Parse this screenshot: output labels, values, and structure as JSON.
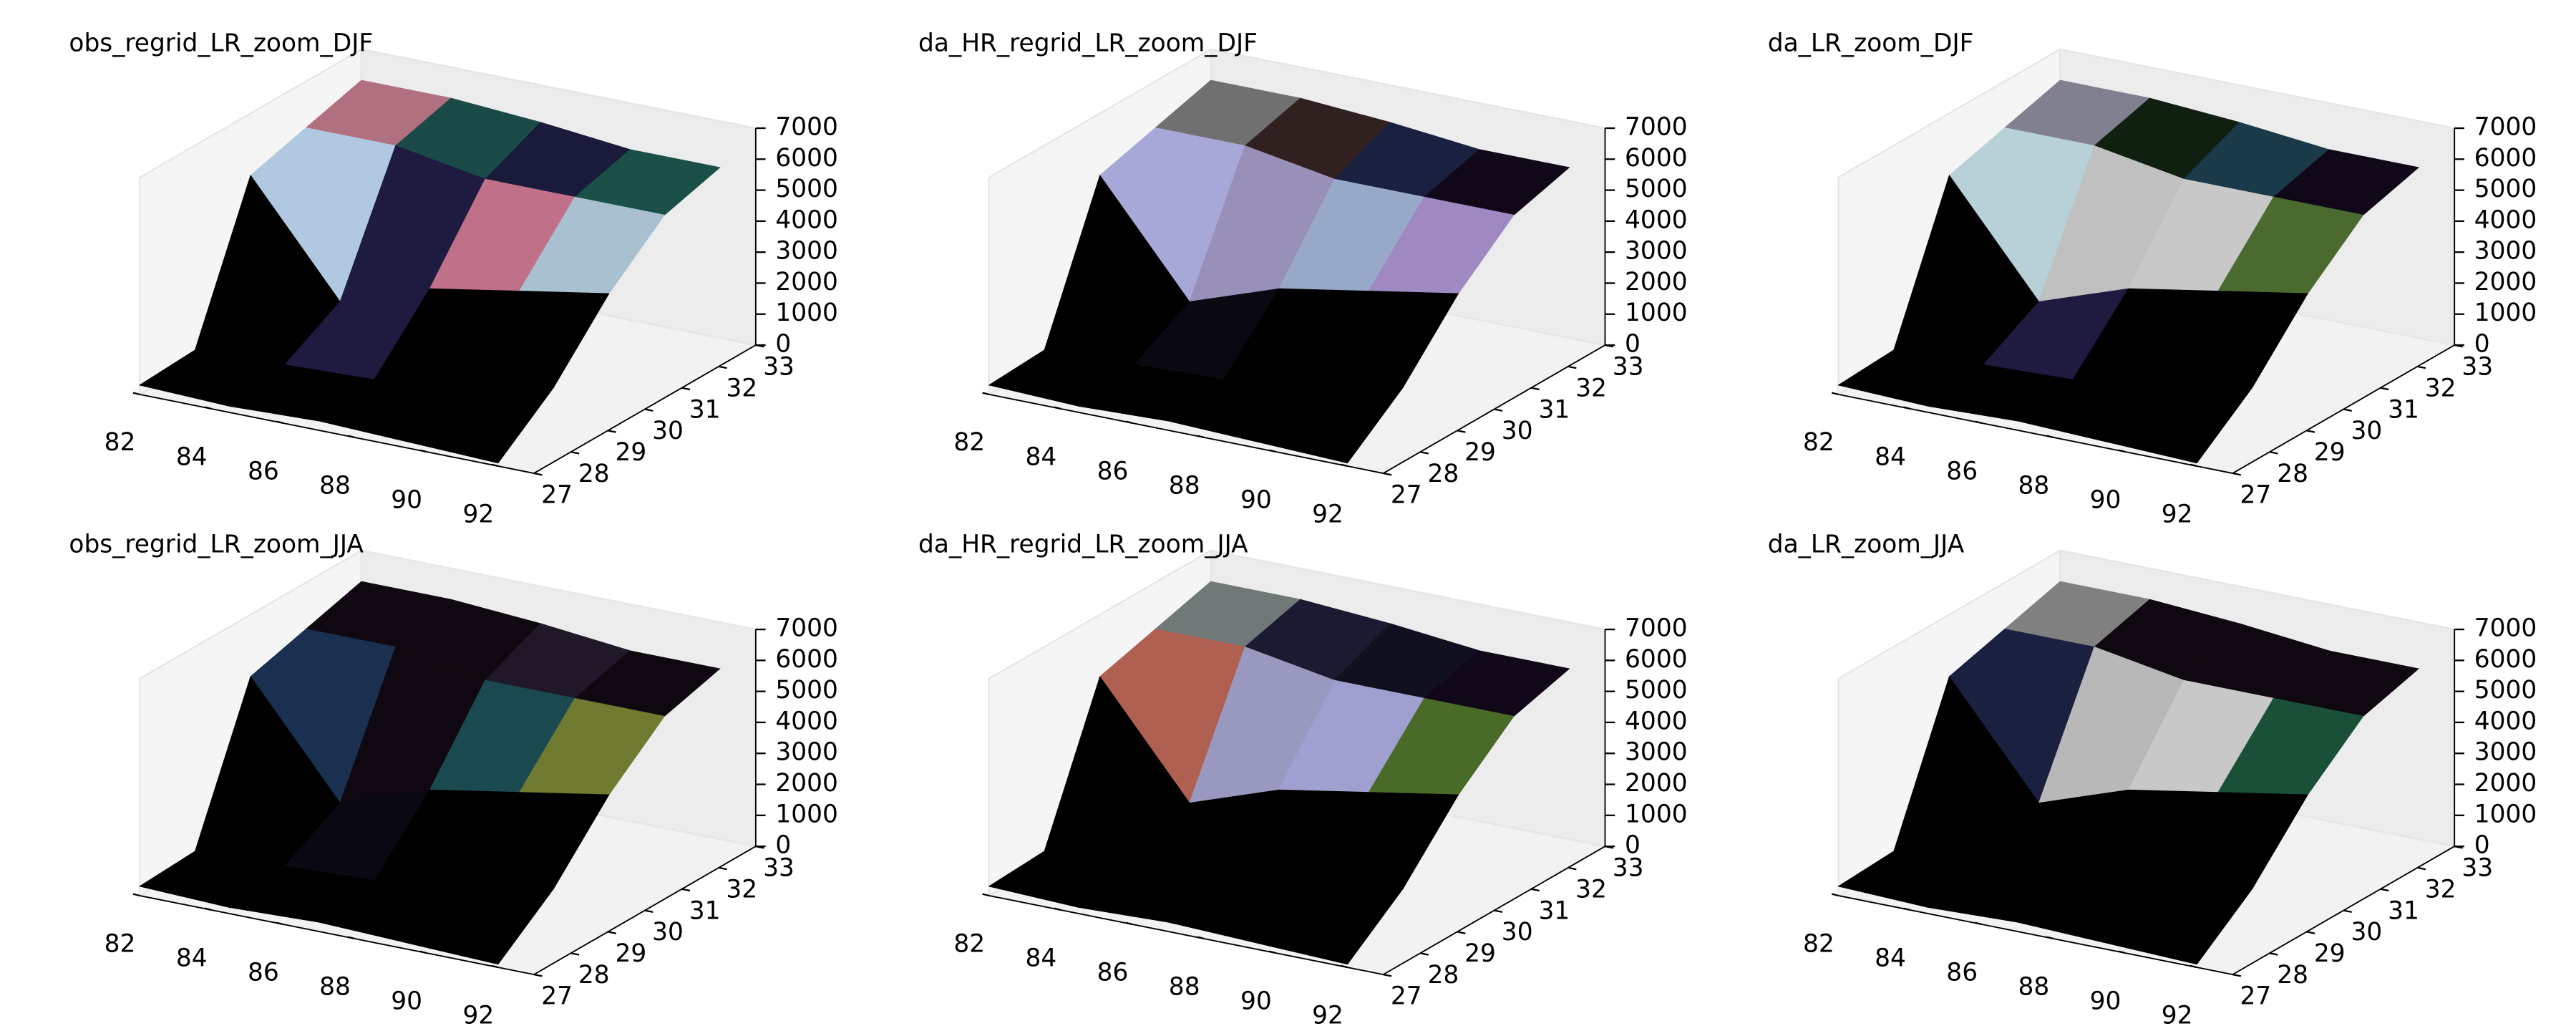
{
  "chart_data": [
    {
      "type": "surface3d",
      "title": "obs_regrid_LR_zoom_DJF",
      "x": [
        82,
        84.5,
        87,
        89.5,
        92
      ],
      "y": [
        27,
        28.5,
        30,
        31.5,
        33
      ],
      "z": [
        [
          300,
          200,
          300,
          200,
          100
        ],
        [
          400,
          500,
          600,
          500,
          1500
        ],
        [
          5000,
          1500,
          2500,
          3000,
          3500
        ],
        [
          5500,
          5500,
          5000,
          5000,
          5000
        ],
        [
          6000,
          6000,
          5800,
          5500,
          5500
        ]
      ],
      "facecolors": [
        [
          "#000000",
          "#000000",
          "#000000",
          "#000000"
        ],
        [
          "#000000",
          "#1e1a40",
          "#000000",
          "#000000"
        ],
        [
          "#b0c8e0",
          "#1e1a40",
          "#c07088",
          "#a8c0d0"
        ],
        [
          "#b07080",
          "#1a4a48",
          "#1a1a3a",
          "#1a5048"
        ]
      ],
      "xlim": [
        82,
        93
      ],
      "ylim": [
        27,
        33
      ],
      "zlim": [
        0,
        7000
      ],
      "xticks": [
        82,
        84,
        86,
        88,
        90,
        92
      ],
      "yticks": [
        27,
        28,
        29,
        30,
        31,
        32,
        33
      ],
      "zticks": [
        0,
        1000,
        2000,
        3000,
        4000,
        5000,
        6000,
        7000
      ]
    },
    {
      "type": "surface3d",
      "title": "da_HR_regrid_LR_zoom_DJF",
      "x": [
        82,
        84.5,
        87,
        89.5,
        92
      ],
      "y": [
        27,
        28.5,
        30,
        31.5,
        33
      ],
      "z": [
        [
          300,
          200,
          300,
          200,
          100
        ],
        [
          400,
          500,
          600,
          500,
          1500
        ],
        [
          5000,
          1500,
          2500,
          3000,
          3500
        ],
        [
          5500,
          5500,
          5000,
          5000,
          5000
        ],
        [
          6000,
          6000,
          5800,
          5500,
          5500
        ]
      ],
      "facecolors": [
        [
          "#000000",
          "#000000",
          "#000000",
          "#000000"
        ],
        [
          "#000000",
          "#0a0810",
          "#000000",
          "#000000"
        ],
        [
          "#a8a8d8",
          "#9890b8",
          "#98a8c8",
          "#a088c0"
        ],
        [
          "#707070",
          "#302020",
          "#1a2040",
          "#100818"
        ]
      ],
      "xlim": [
        82,
        93
      ],
      "ylim": [
        27,
        33
      ],
      "zlim": [
        0,
        7000
      ],
      "xticks": [
        82,
        84,
        86,
        88,
        90,
        92
      ],
      "yticks": [
        27,
        28,
        29,
        30,
        31,
        32,
        33
      ],
      "zticks": [
        0,
        1000,
        2000,
        3000,
        4000,
        5000,
        6000,
        7000
      ]
    },
    {
      "type": "surface3d",
      "title": "da_LR_zoom_DJF",
      "x": [
        82,
        84.5,
        87,
        89.5,
        92
      ],
      "y": [
        27,
        28.5,
        30,
        31.5,
        33
      ],
      "z": [
        [
          300,
          200,
          300,
          200,
          100
        ],
        [
          400,
          500,
          600,
          500,
          1500
        ],
        [
          5000,
          1500,
          2500,
          3000,
          3500
        ],
        [
          5500,
          5500,
          5000,
          5000,
          5000
        ],
        [
          6000,
          6000,
          5800,
          5500,
          5500
        ]
      ],
      "facecolors": [
        [
          "#000000",
          "#000000",
          "#000000",
          "#000000"
        ],
        [
          "#000000",
          "#1e1a40",
          "#000000",
          "#000000"
        ],
        [
          "#b8d0d8",
          "#c0c0c0",
          "#c8c8c8",
          "#4a6a30"
        ],
        [
          "#808090",
          "#102010",
          "#1a3a4a",
          "#100818"
        ]
      ],
      "xlim": [
        82,
        93
      ],
      "ylim": [
        27,
        33
      ],
      "zlim": [
        0,
        7000
      ],
      "xticks": [
        82,
        84,
        86,
        88,
        90,
        92
      ],
      "yticks": [
        27,
        28,
        29,
        30,
        31,
        32,
        33
      ],
      "zticks": [
        0,
        1000,
        2000,
        3000,
        4000,
        5000,
        6000,
        7000
      ]
    },
    {
      "type": "surface3d",
      "title": "obs_regrid_LR_zoom_JJA",
      "x": [
        82,
        84.5,
        87,
        89.5,
        92
      ],
      "y": [
        27,
        28.5,
        30,
        31.5,
        33
      ],
      "z": [
        [
          300,
          200,
          300,
          200,
          100
        ],
        [
          400,
          500,
          600,
          500,
          1500
        ],
        [
          5000,
          1500,
          2500,
          3000,
          3500
        ],
        [
          5500,
          5500,
          5000,
          5000,
          5000
        ],
        [
          6000,
          6000,
          5800,
          5500,
          5500
        ]
      ],
      "facecolors": [
        [
          "#000000",
          "#000000",
          "#000000",
          "#000000"
        ],
        [
          "#000000",
          "#0a0810",
          "#000000",
          "#000000"
        ],
        [
          "#1a3050",
          "#100810",
          "#1a4a50",
          "#707a30"
        ],
        [
          "#100810",
          "#100810",
          "#201828",
          "#100810"
        ]
      ],
      "xlim": [
        82,
        93
      ],
      "ylim": [
        27,
        33
      ],
      "zlim": [
        0,
        7000
      ],
      "xticks": [
        82,
        84,
        86,
        88,
        90,
        92
      ],
      "yticks": [
        27,
        28,
        29,
        30,
        31,
        32,
        33
      ],
      "zticks": [
        0,
        1000,
        2000,
        3000,
        4000,
        5000,
        6000,
        7000
      ]
    },
    {
      "type": "surface3d",
      "title": "da_HR_regrid_LR_zoom_JJA",
      "x": [
        82,
        84.5,
        87,
        89.5,
        92
      ],
      "y": [
        27,
        28.5,
        30,
        31.5,
        33
      ],
      "z": [
        [
          300,
          200,
          300,
          200,
          100
        ],
        [
          400,
          500,
          600,
          500,
          1500
        ],
        [
          5000,
          1500,
          2500,
          3000,
          3500
        ],
        [
          5500,
          5500,
          5000,
          5000,
          5000
        ],
        [
          6000,
          6000,
          5800,
          5500,
          5500
        ]
      ],
      "facecolors": [
        [
          "#000000",
          "#000000",
          "#000000",
          "#000000"
        ],
        [
          "#000000",
          "#000000",
          "#000000",
          "#000000"
        ],
        [
          "#b06050",
          "#9898c0",
          "#a0a0d0",
          "#4a6a28"
        ],
        [
          "#707878",
          "#1a1a30",
          "#101020",
          "#100818"
        ]
      ],
      "xlim": [
        82,
        93
      ],
      "ylim": [
        27,
        33
      ],
      "zlim": [
        0,
        7000
      ],
      "xticks": [
        82,
        84,
        86,
        88,
        90,
        92
      ],
      "yticks": [
        27,
        28,
        29,
        30,
        31,
        32,
        33
      ],
      "zticks": [
        0,
        1000,
        2000,
        3000,
        4000,
        5000,
        6000,
        7000
      ]
    },
    {
      "type": "surface3d",
      "title": "da_LR_zoom_JJA",
      "x": [
        82,
        84.5,
        87,
        89.5,
        92
      ],
      "y": [
        27,
        28.5,
        30,
        31.5,
        33
      ],
      "z": [
        [
          300,
          200,
          300,
          200,
          100
        ],
        [
          400,
          500,
          600,
          500,
          1500
        ],
        [
          5000,
          1500,
          2500,
          3000,
          3500
        ],
        [
          5500,
          5500,
          5000,
          5000,
          5000
        ],
        [
          6000,
          6000,
          5800,
          5500,
          5500
        ]
      ],
      "facecolors": [
        [
          "#000000",
          "#000000",
          "#000000",
          "#000000"
        ],
        [
          "#000000",
          "#000000",
          "#000000",
          "#000000"
        ],
        [
          "#1a2040",
          "#b8b8b8",
          "#c8c8c8",
          "#1a5038"
        ],
        [
          "#808080",
          "#100810",
          "#100810",
          "#100810"
        ]
      ],
      "xlim": [
        82,
        93
      ],
      "ylim": [
        27,
        33
      ],
      "zlim": [
        0,
        7000
      ],
      "xticks": [
        82,
        84,
        86,
        88,
        90,
        92
      ],
      "yticks": [
        27,
        28,
        29,
        30,
        31,
        32,
        33
      ],
      "zticks": [
        0,
        1000,
        2000,
        3000,
        4000,
        5000,
        6000,
        7000
      ]
    }
  ]
}
